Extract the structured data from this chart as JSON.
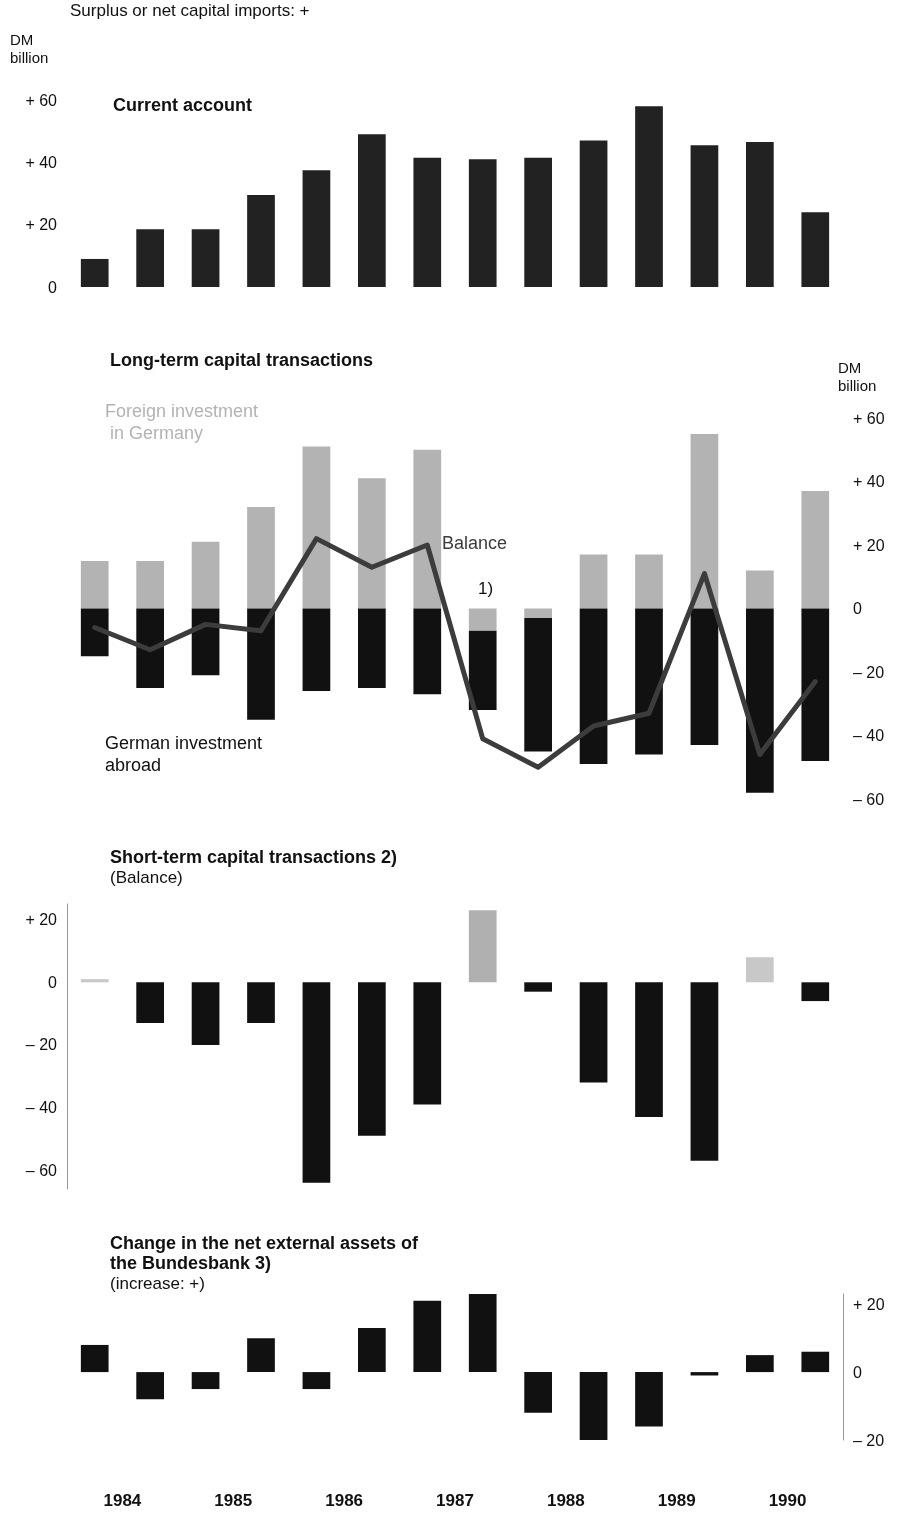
{
  "chart_data": [
    {
      "type": "bar",
      "title": "Current account",
      "ylabel": "DM billion",
      "annotations": [
        "Surplus or net capital imports: +"
      ],
      "categories": [
        null,
        null,
        null,
        null,
        null,
        null,
        null,
        null,
        null,
        null,
        null,
        null,
        null,
        null
      ],
      "values": [
        9,
        18.5,
        18.5,
        29.5,
        37.5,
        49,
        41.5,
        41,
        41.5,
        47,
        58,
        45.5,
        46.5,
        24
      ],
      "color": "#222222",
      "ylim": [
        0,
        60
      ],
      "yticks": [
        {
          "value": 0,
          "label": "0"
        },
        {
          "value": 20,
          "label": "+ 20"
        },
        {
          "value": 40,
          "label": "+ 40"
        },
        {
          "value": 60,
          "label": "+ 60"
        }
      ],
      "tick_labels": "y"
    },
    {
      "type": "bar",
      "title": "Long-term capital transactions",
      "ylabel": "DM billion",
      "annotations": [
        "1)"
      ],
      "stacked": true,
      "categories": [
        null,
        null,
        null,
        null,
        null,
        null,
        null,
        null,
        null,
        null,
        null,
        null,
        null,
        null
      ],
      "series": [
        {
          "name": "Foreign investment in Germany",
          "color": "#b3b3b3",
          "values": [
            15,
            15,
            21,
            32,
            51,
            41,
            50,
            -7,
            -3,
            17,
            17,
            55,
            12,
            37
          ]
        },
        {
          "name": "German investment abroad",
          "color": "#111111",
          "values": [
            -15,
            -25,
            -21,
            -35,
            -26,
            -25,
            -27,
            -25,
            -42,
            -49,
            -46,
            -43,
            -58,
            -48
          ]
        },
        {
          "name": "Balance",
          "type": "line",
          "color": "#3c3c3c",
          "marker": "none",
          "line_style": "solid",
          "values": [
            -6,
            -13,
            -5,
            -7,
            22,
            13,
            20,
            -41,
            -50,
            -37,
            -33,
            11,
            -46,
            -23
          ]
        }
      ],
      "ylim": [
        -60,
        60
      ],
      "yticks": [
        {
          "value": -60,
          "label": "– 60"
        },
        {
          "value": -40,
          "label": "– 40"
        },
        {
          "value": -20,
          "label": "– 20"
        },
        {
          "value": 0,
          "label": "0"
        },
        {
          "value": 20,
          "label": "+ 20"
        },
        {
          "value": 40,
          "label": "+ 40"
        },
        {
          "value": 60,
          "label": "+ 60"
        }
      ],
      "tick_labels": "y"
    },
    {
      "type": "bar",
      "title": "Short-term capital transactions 2)",
      "subtitle": "(Balance)",
      "categories": [
        null,
        null,
        null,
        null,
        null,
        null,
        null,
        null,
        null,
        null,
        null,
        null,
        null,
        null
      ],
      "values": [
        1,
        -13,
        -20,
        -13,
        -64,
        -49,
        -39,
        23,
        -3,
        -32,
        -43,
        -57,
        8,
        -6
      ],
      "colors": [
        "#c8c8c8",
        "#111111",
        "#111111",
        "#111111",
        "#111111",
        "#111111",
        "#111111",
        "#b0b0b0",
        "#111111",
        "#111111",
        "#111111",
        "#111111",
        "#c8c8c8",
        "#111111"
      ],
      "ylim": [
        -66,
        25
      ],
      "yticks": [
        {
          "value": -60,
          "label": "– 60"
        },
        {
          "value": -40,
          "label": "– 40"
        },
        {
          "value": -20,
          "label": "– 20"
        },
        {
          "value": 0,
          "label": "0"
        },
        {
          "value": 20,
          "label": "+ 20"
        }
      ],
      "tick_labels": "y"
    },
    {
      "type": "bar",
      "title": "Change in the net external assets of the Bundesbank 3)",
      "subtitle": "(increase: +)",
      "categories": [
        "1984",
        null,
        "1985",
        null,
        "1986",
        null,
        "1987",
        null,
        "1988",
        null,
        "1989",
        null,
        "1990",
        null
      ],
      "values": [
        8,
        -8,
        -5,
        10,
        -5,
        13,
        21,
        23,
        -12,
        -20,
        -16,
        -1,
        5,
        6
      ],
      "color": "#111111",
      "ylim": [
        -20,
        23
      ],
      "yticks": [
        {
          "value": -20,
          "label": "– 20"
        },
        {
          "value": 0,
          "label": "0"
        },
        {
          "value": 20,
          "label": "+ 20"
        }
      ]
    }
  ]
}
